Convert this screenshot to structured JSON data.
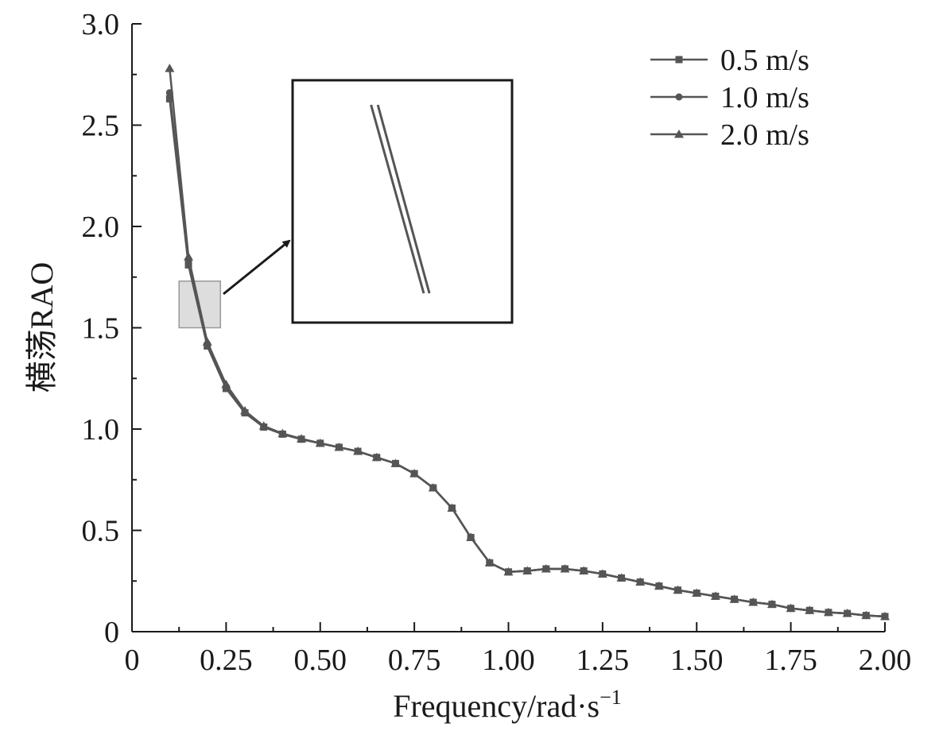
{
  "chart_data": {
    "type": "line",
    "xlabel_main": "Frequency/rad·s",
    "xlabel_sup": "−1",
    "ylabel": "横荡RAO",
    "xlim": [
      0,
      2.0
    ],
    "ylim": [
      0,
      3.0
    ],
    "x_ticks": [
      {
        "value": 0,
        "label": "0"
      },
      {
        "value": 0.25,
        "label": "0.25"
      },
      {
        "value": 0.5,
        "label": "0.50"
      },
      {
        "value": 0.75,
        "label": "0.75"
      },
      {
        "value": 1.0,
        "label": "1.00"
      },
      {
        "value": 1.25,
        "label": "1.25"
      },
      {
        "value": 1.5,
        "label": "1.50"
      },
      {
        "value": 1.75,
        "label": "1.75"
      },
      {
        "value": 2.0,
        "label": "2.00"
      }
    ],
    "y_ticks": [
      {
        "value": 0,
        "label": "0"
      },
      {
        "value": 0.5,
        "label": "0.5"
      },
      {
        "value": 1.0,
        "label": "1.0"
      },
      {
        "value": 1.5,
        "label": "1.5"
      },
      {
        "value": 2.0,
        "label": "2.0"
      },
      {
        "value": 2.5,
        "label": "2.5"
      },
      {
        "value": 3.0,
        "label": "3.0"
      }
    ],
    "grid": false,
    "legend_position": "top-right",
    "colors": {
      "axis": "#1a1a1a",
      "series": "#555555",
      "highlight_fill": "#dddddd",
      "highlight_stroke": "#999999"
    },
    "x": [
      0.1,
      0.15,
      0.2,
      0.25,
      0.3,
      0.35,
      0.4,
      0.45,
      0.5,
      0.55,
      0.6,
      0.65,
      0.7,
      0.75,
      0.8,
      0.85,
      0.9,
      0.95,
      1.0,
      1.05,
      1.1,
      1.15,
      1.2,
      1.25,
      1.3,
      1.35,
      1.4,
      1.45,
      1.5,
      1.55,
      1.6,
      1.65,
      1.7,
      1.75,
      1.8,
      1.85,
      1.9,
      1.95,
      2.0
    ],
    "series": [
      {
        "name": "0.5 m/s",
        "marker": "square",
        "values": [
          2.63,
          1.81,
          1.41,
          1.2,
          1.08,
          1.01,
          0.975,
          0.95,
          0.93,
          0.91,
          0.89,
          0.86,
          0.83,
          0.78,
          0.71,
          0.61,
          0.465,
          0.34,
          0.295,
          0.3,
          0.31,
          0.31,
          0.3,
          0.285,
          0.265,
          0.245,
          0.225,
          0.205,
          0.19,
          0.175,
          0.16,
          0.145,
          0.135,
          0.115,
          0.105,
          0.095,
          0.09,
          0.08,
          0.075
        ]
      },
      {
        "name": "1.0 m/s",
        "marker": "circle",
        "values": [
          2.66,
          1.83,
          1.42,
          1.21,
          1.08,
          1.01,
          0.975,
          0.95,
          0.93,
          0.91,
          0.89,
          0.86,
          0.83,
          0.78,
          0.71,
          0.61,
          0.465,
          0.34,
          0.295,
          0.3,
          0.31,
          0.31,
          0.3,
          0.285,
          0.265,
          0.245,
          0.225,
          0.205,
          0.19,
          0.175,
          0.16,
          0.145,
          0.135,
          0.115,
          0.105,
          0.095,
          0.09,
          0.08,
          0.075
        ]
      },
      {
        "name": "2.0 m/s",
        "marker": "triangle",
        "values": [
          2.78,
          1.85,
          1.43,
          1.22,
          1.09,
          1.015,
          0.978,
          0.952,
          0.93,
          0.91,
          0.89,
          0.86,
          0.83,
          0.78,
          0.71,
          0.61,
          0.465,
          0.34,
          0.295,
          0.3,
          0.31,
          0.31,
          0.3,
          0.285,
          0.265,
          0.245,
          0.225,
          0.205,
          0.19,
          0.175,
          0.16,
          0.145,
          0.135,
          0.115,
          0.105,
          0.095,
          0.09,
          0.08,
          0.075
        ]
      }
    ],
    "highlight_region": {
      "x": [
        0.125,
        0.235
      ],
      "y": [
        1.5,
        1.73
      ]
    },
    "inset": {
      "lines": [
        {
          "x": [
            0.635,
            0.775
          ],
          "y": [
            2.6,
            1.67
          ]
        },
        {
          "x": [
            0.653,
            0.79
          ],
          "y": [
            2.6,
            1.67
          ]
        }
      ]
    }
  }
}
